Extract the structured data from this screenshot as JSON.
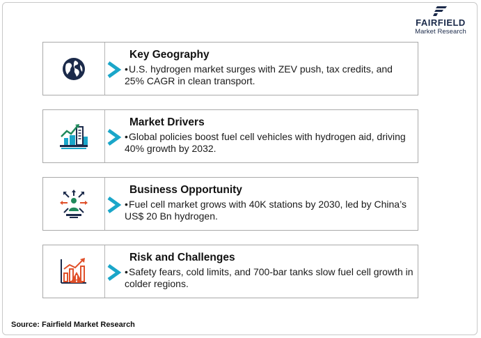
{
  "logo": {
    "brand": "FAIRFIELD",
    "tagline": "Market Research"
  },
  "cards": [
    {
      "icon": "globe-icon",
      "title": "Key Geography",
      "bullet": "•",
      "text": "U.S. hydrogen market surges with ZEV push, tax credits, and 25% CAGR in clean transport."
    },
    {
      "icon": "growth-city-icon",
      "title": "Market Drivers",
      "bullet": "•",
      "text": "Global policies boost fuel cell vehicles with hydrogen aid, driving 40% growth by 2032."
    },
    {
      "icon": "opportunity-arrows-icon",
      "title": "Business Opportunity",
      "bullet": "•",
      "text": "Fuel cell market grows with 40K stations by 2030, led by China’s US$ 20 Bn hydrogen."
    },
    {
      "icon": "risk-chart-warning-icon",
      "title": "Risk and Challenges",
      "bullet": "•",
      "text": "Safety fears, cold limits, and 700-bar tanks slow fuel cell growth in colder regions."
    }
  ],
  "source": "Source: Fairfield Market Research",
  "colors": {
    "chevron": "#1aa6c9",
    "navy": "#1b2a4a",
    "green": "#1f8a5b",
    "orange": "#e0502a",
    "border": "#a9a9a9"
  }
}
